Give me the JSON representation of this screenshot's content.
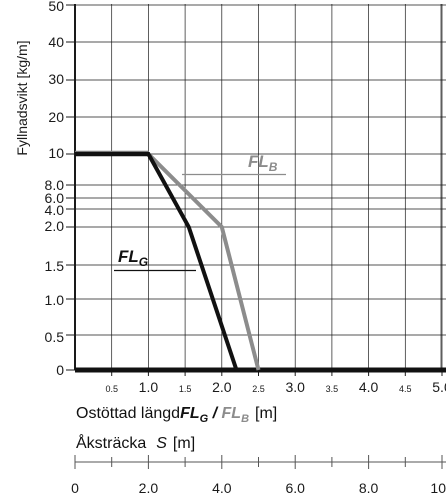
{
  "chart_data": {
    "type": "line",
    "ylabel": "Fyllnadsvikt [kg/m]",
    "xlabel_main": "Ostöttad längd",
    "xlabel_fl_g": "FL",
    "xlabel_fl_g_sub": "G",
    "xlabel_sep": " / ",
    "xlabel_fl_b": "FL",
    "xlabel_fl_b_sub": "B",
    "xlabel_unit": "[m]",
    "x2label": "Åksträcka",
    "x2label_var": "S",
    "x2label_unit": "[m]",
    "y_ticks": [
      "0",
      "0.5",
      "1.0",
      "1.5",
      "2.0",
      "4.0",
      "6.0",
      "8.0",
      "10",
      "20",
      "30",
      "40",
      "50"
    ],
    "x_ticks": [
      {
        "value": 0.5,
        "label": "0.5",
        "major": false
      },
      {
        "value": 1.0,
        "label": "1.0",
        "major": true
      },
      {
        "value": 1.5,
        "label": "1.5",
        "major": false
      },
      {
        "value": 2.0,
        "label": "2.0",
        "major": true
      },
      {
        "value": 2.5,
        "label": "2.5",
        "major": false
      },
      {
        "value": 3.0,
        "label": "3.0",
        "major": true
      },
      {
        "value": 3.5,
        "label": "3.5",
        "major": false
      },
      {
        "value": 4.0,
        "label": "4.0",
        "major": true
      },
      {
        "value": 4.5,
        "label": "4.5",
        "major": false
      },
      {
        "value": 5.0,
        "label": "5.0",
        "major": true
      }
    ],
    "x2_ticks": [
      "0",
      "2.0",
      "4.0",
      "6.0",
      "8.0",
      "10"
    ],
    "xlim": [
      0,
      5.0
    ],
    "x2lim": [
      0,
      10
    ],
    "grid": true,
    "series": [
      {
        "name": "FL",
        "sub": "G",
        "color": "#111111",
        "points": [
          [
            0,
            "10"
          ],
          [
            1.0,
            "10"
          ],
          [
            1.55,
            "2.0"
          ],
          [
            2.2,
            "0"
          ]
        ]
      },
      {
        "name": "FL",
        "sub": "B",
        "color": "#8c8c8c",
        "points": [
          [
            0,
            "10"
          ],
          [
            1.0,
            "10"
          ],
          [
            2.0,
            "2.0"
          ],
          [
            2.5,
            "0"
          ]
        ]
      }
    ],
    "flat_segment_color": "#7a7a7a"
  }
}
